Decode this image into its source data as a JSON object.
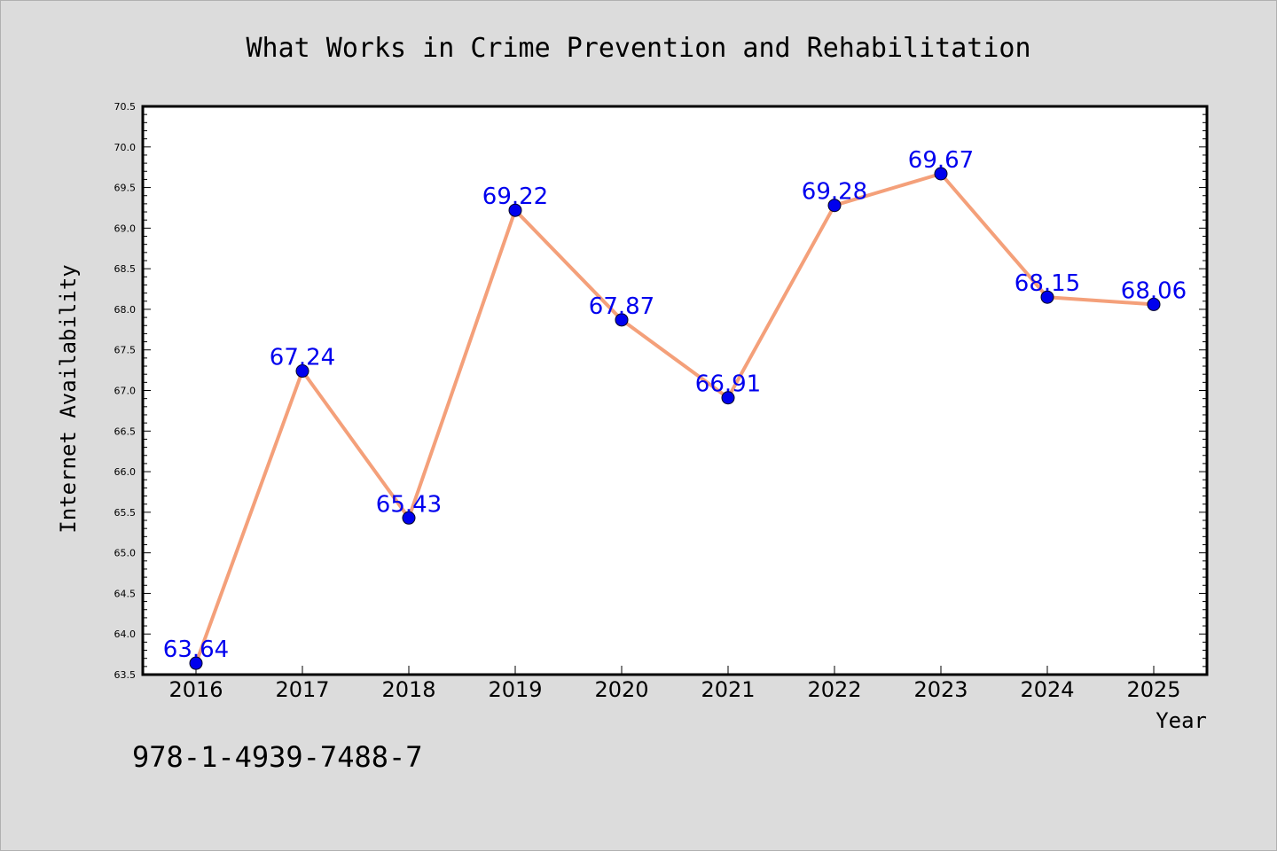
{
  "chart_data": {
    "type": "line",
    "title": "What Works in Crime Prevention and Rehabilitation",
    "xlabel": "Year",
    "ylabel": "Internet Availability",
    "categories": [
      "2016",
      "2017",
      "2018",
      "2019",
      "2020",
      "2021",
      "2022",
      "2023",
      "2024",
      "2025"
    ],
    "series": [
      {
        "values": [
          63.64,
          67.24,
          65.43,
          69.22,
          67.87,
          66.91,
          69.28,
          69.67,
          68.15,
          68.06
        ]
      }
    ],
    "data_labels": [
      "63.64",
      "67.24",
      "65.43",
      "69.22",
      "67.87",
      "66.91",
      "69.28",
      "69.67",
      "68.15",
      "68.06"
    ],
    "ylim": [
      63.5,
      70.5
    ],
    "yticks": [
      "63.5",
      "64.0",
      "64.5",
      "65.0",
      "65.5",
      "66.0",
      "66.5",
      "67.0",
      "67.5",
      "68.0",
      "68.5",
      "69.0",
      "69.5",
      "70.0",
      "70.5"
    ],
    "grid": false,
    "line_color": "#f4a07a",
    "marker_color": "#0000ee",
    "label_color": "#0000ee"
  },
  "footer": {
    "isbn": "978-1-4939-7488-7"
  }
}
